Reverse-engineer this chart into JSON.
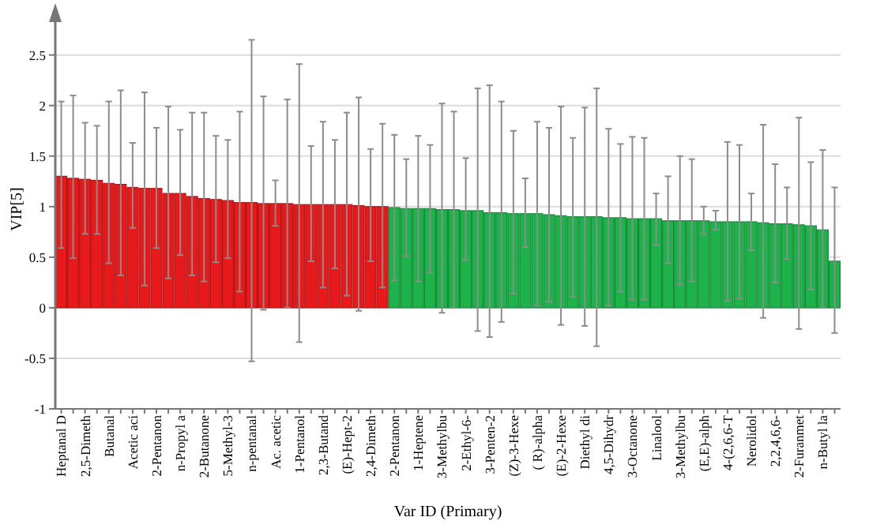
{
  "chart_data": {
    "type": "bar",
    "xlabel": "Var ID (Primary)",
    "ylabel": "VIP[5]",
    "categories": [
      "Heptanal D",
      null,
      "2,5-Dimeth",
      null,
      "Butanal",
      null,
      "Acetic aci",
      null,
      "2-Pentanon",
      null,
      "n-Propyl a",
      null,
      "2-Butanone",
      null,
      "5-Methyl-3",
      null,
      "n-pentanal",
      null,
      "Ac. acetic",
      null,
      "1-Pentanol",
      null,
      "2,3-Butand",
      null,
      "(E)-Hept-2",
      null,
      "2,4-Dimeth",
      null,
      "2-Pentanon",
      null,
      "1-Heptene",
      null,
      "3-Methylbu",
      null,
      "2-Ethyl-6-",
      null,
      "3-Penten-2",
      null,
      "(Z)-3-Hexe",
      null,
      "( R)-alpha",
      null,
      "(E)-2-Hexe",
      null,
      "Diethyl di",
      null,
      "4,5-Dihydr",
      null,
      "3-Octanone",
      null,
      "Linalool",
      null,
      "3-Methylbu",
      null,
      "(E,E)-alph",
      null,
      "4-(2,6,6-T",
      null,
      "Nerolidol",
      null,
      "2,2,4,6,6-",
      null,
      "2-Furanmet",
      null,
      "n-Butyl la",
      null
    ],
    "values": [
      1.3,
      1.28,
      1.27,
      1.26,
      1.23,
      1.22,
      1.19,
      1.18,
      1.18,
      1.13,
      1.13,
      1.1,
      1.08,
      1.07,
      1.06,
      1.04,
      1.04,
      1.03,
      1.03,
      1.03,
      1.02,
      1.02,
      1.02,
      1.02,
      1.02,
      1.01,
      1.0,
      1.0,
      0.99,
      0.98,
      0.98,
      0.98,
      0.97,
      0.97,
      0.96,
      0.96,
      0.94,
      0.94,
      0.93,
      0.93,
      0.93,
      0.92,
      0.91,
      0.9,
      0.9,
      0.9,
      0.89,
      0.89,
      0.88,
      0.88,
      0.88,
      0.86,
      0.86,
      0.86,
      0.86,
      0.85,
      0.85,
      0.85,
      0.85,
      0.84,
      0.83,
      0.83,
      0.82,
      0.81,
      0.77,
      0.46
    ],
    "colors": [
      "#e8191a",
      "#e8191a",
      "#e8191a",
      "#e8191a",
      "#e8191a",
      "#e8191a",
      "#e8191a",
      "#e8191a",
      "#e8191a",
      "#e8191a",
      "#e8191a",
      "#e8191a",
      "#e8191a",
      "#e8191a",
      "#e8191a",
      "#e8191a",
      "#e8191a",
      "#e8191a",
      "#e8191a",
      "#e8191a",
      "#e8191a",
      "#e8191a",
      "#e8191a",
      "#e8191a",
      "#e8191a",
      "#e8191a",
      "#e8191a",
      "#e8191a",
      "#1db34a",
      "#1db34a",
      "#1db34a",
      "#1db34a",
      "#1db34a",
      "#1db34a",
      "#1db34a",
      "#1db34a",
      "#1db34a",
      "#1db34a",
      "#1db34a",
      "#1db34a",
      "#1db34a",
      "#1db34a",
      "#1db34a",
      "#1db34a",
      "#1db34a",
      "#1db34a",
      "#1db34a",
      "#1db34a",
      "#1db34a",
      "#1db34a",
      "#1db34a",
      "#1db34a",
      "#1db34a",
      "#1db34a",
      "#1db34a",
      "#1db34a",
      "#1db34a",
      "#1db34a",
      "#1db34a",
      "#1db34a",
      "#1db34a",
      "#1db34a",
      "#1db34a",
      "#1db34a",
      "#1db34a",
      "#1db34a"
    ],
    "errors": [
      [
        0.59,
        2.04
      ],
      [
        0.49,
        2.1
      ],
      [
        0.73,
        1.83
      ],
      [
        0.73,
        1.8
      ],
      [
        0.44,
        2.04
      ],
      [
        0.32,
        2.15
      ],
      [
        0.79,
        1.63
      ],
      [
        0.22,
        2.13
      ],
      [
        0.59,
        1.78
      ],
      [
        0.29,
        1.99
      ],
      [
        0.52,
        1.76
      ],
      [
        0.32,
        1.93
      ],
      [
        0.26,
        1.93
      ],
      [
        0.45,
        1.7
      ],
      [
        0.49,
        1.66
      ],
      [
        0.16,
        1.94
      ],
      [
        -0.53,
        2.65
      ],
      [
        -0.02,
        2.09
      ],
      [
        0.81,
        1.26
      ],
      [
        0.0,
        2.06
      ],
      [
        -0.34,
        2.41
      ],
      [
        0.46,
        1.6
      ],
      [
        0.2,
        1.84
      ],
      [
        0.39,
        1.66
      ],
      [
        0.12,
        1.93
      ],
      [
        -0.03,
        2.08
      ],
      [
        0.46,
        1.57
      ],
      [
        0.2,
        1.82
      ],
      [
        0.27,
        1.71
      ],
      [
        0.51,
        1.47
      ],
      [
        0.26,
        1.7
      ],
      [
        0.35,
        1.61
      ],
      [
        -0.05,
        2.02
      ],
      [
        0.0,
        1.94
      ],
      [
        0.47,
        1.48
      ],
      [
        -0.23,
        2.17
      ],
      [
        -0.29,
        2.2
      ],
      [
        -0.14,
        2.04
      ],
      [
        0.14,
        1.75
      ],
      [
        0.6,
        1.28
      ],
      [
        0.02,
        1.84
      ],
      [
        0.06,
        1.78
      ],
      [
        -0.17,
        1.99
      ],
      [
        0.11,
        1.68
      ],
      [
        -0.18,
        1.98
      ],
      [
        -0.38,
        2.17
      ],
      [
        0.02,
        1.77
      ],
      [
        0.16,
        1.62
      ],
      [
        0.08,
        1.69
      ],
      [
        0.08,
        1.68
      ],
      [
        0.62,
        1.13
      ],
      [
        0.44,
        1.3
      ],
      [
        0.23,
        1.5
      ],
      [
        0.26,
        1.47
      ],
      [
        0.73,
        1.0
      ],
      [
        0.77,
        0.96
      ],
      [
        0.07,
        1.64
      ],
      [
        0.09,
        1.61
      ],
      [
        0.57,
        1.13
      ],
      [
        -0.1,
        1.81
      ],
      [
        0.25,
        1.42
      ],
      [
        0.48,
        1.19
      ],
      [
        -0.21,
        1.88
      ],
      [
        0.18,
        1.44
      ],
      [
        0.0,
        1.56
      ],
      [
        -0.25,
        1.19
      ]
    ],
    "ylim": [
      -1,
      2.95
    ],
    "yticks": [
      -1,
      -0.5,
      0,
      0.5,
      1,
      1.5,
      2,
      2.5
    ],
    "grid": "y"
  }
}
